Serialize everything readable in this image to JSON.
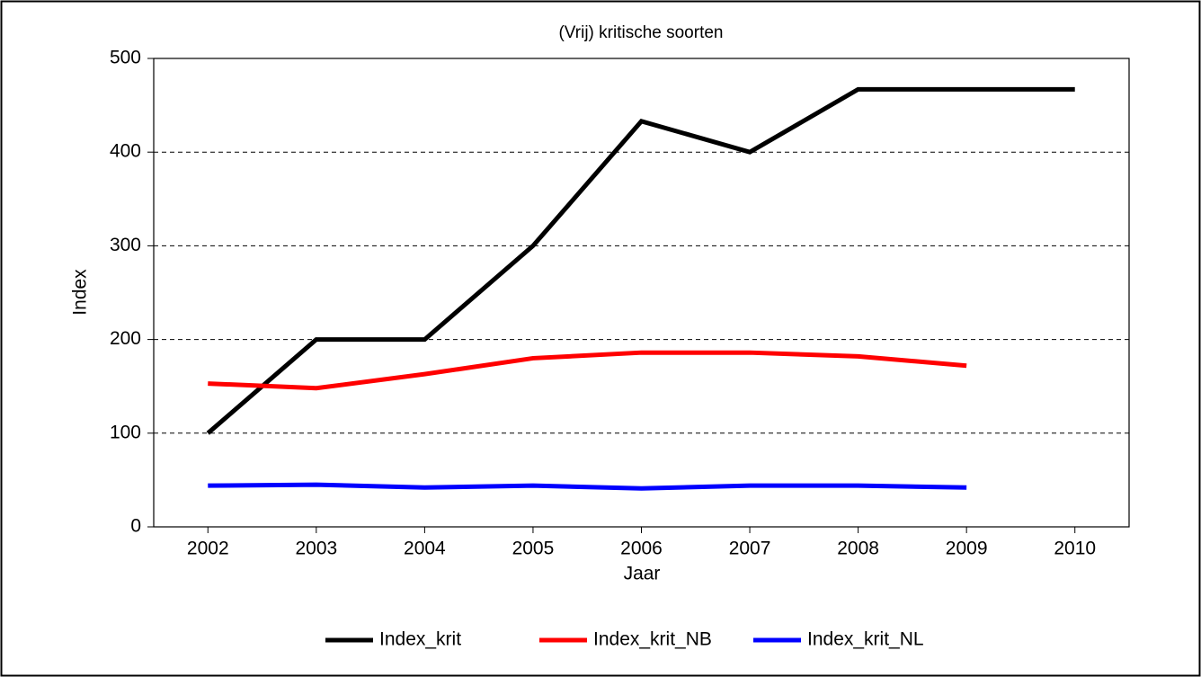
{
  "chart_data": {
    "type": "line",
    "title": "(Vrij) kritische soorten",
    "x_label": "Jaar",
    "y_label": "Index",
    "categories": [
      "2002",
      "2003",
      "2004",
      "2005",
      "2006",
      "2007",
      "2008",
      "2009",
      "2010"
    ],
    "series": [
      {
        "name": "Index_krit",
        "color": "#000000",
        "values": [
          100,
          200,
          200,
          300,
          433,
          400,
          467,
          467,
          467
        ]
      },
      {
        "name": "Index_krit_NB",
        "color": "#ff0000",
        "values": [
          153,
          148,
          163,
          180,
          186,
          186,
          182,
          172,
          null
        ]
      },
      {
        "name": "Index_krit_NL",
        "color": "#0000ff",
        "values": [
          44,
          45,
          42,
          44,
          41,
          44,
          44,
          42,
          null
        ]
      }
    ],
    "ylim": [
      0,
      500
    ],
    "yticks": [
      0,
      100,
      200,
      300,
      400,
      500
    ],
    "grid": true,
    "legend": "bottom"
  }
}
